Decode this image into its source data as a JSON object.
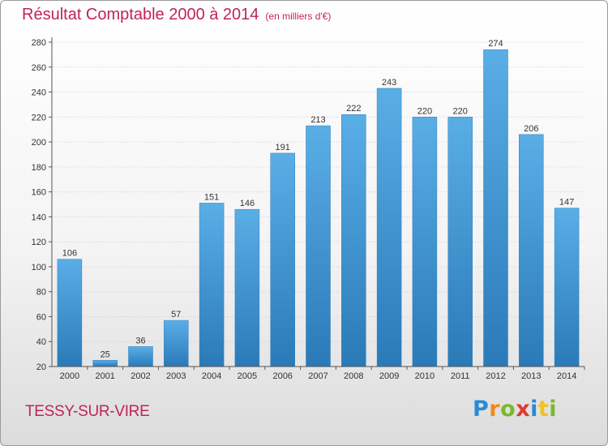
{
  "chart_data": {
    "type": "bar",
    "title": "Résultat Comptable 2000 à 2014",
    "subtitle": "(en milliers d'€)",
    "categories": [
      "2000",
      "2001",
      "2002",
      "2003",
      "2004",
      "2005",
      "2006",
      "2007",
      "2008",
      "2009",
      "2010",
      "2011",
      "2012",
      "2013",
      "2014"
    ],
    "values": [
      106,
      25,
      36,
      57,
      151,
      146,
      191,
      213,
      222,
      243,
      220,
      220,
      274,
      206,
      147
    ],
    "ylim": [
      20,
      280
    ],
    "yticks": [
      20,
      40,
      60,
      80,
      100,
      120,
      140,
      160,
      180,
      200,
      220,
      240,
      260,
      280
    ],
    "grid": true,
    "bar_color_top": "#5aaee6",
    "bar_color_bottom": "#2a7ab8"
  },
  "footer": {
    "commune": "TESSY-SUR-VIRE",
    "logo_letters": [
      {
        "char": "P",
        "color": "#2a8ad6"
      },
      {
        "char": "r",
        "color": "#f08a1c"
      },
      {
        "char": "o",
        "color": "#7ab82e"
      },
      {
        "char": "x",
        "color": "#e23a2e"
      },
      {
        "char": "i",
        "color": "#2a8ad6"
      },
      {
        "char": "t",
        "color": "#f0c21c"
      },
      {
        "char": "i",
        "color": "#7ab82e"
      }
    ]
  }
}
